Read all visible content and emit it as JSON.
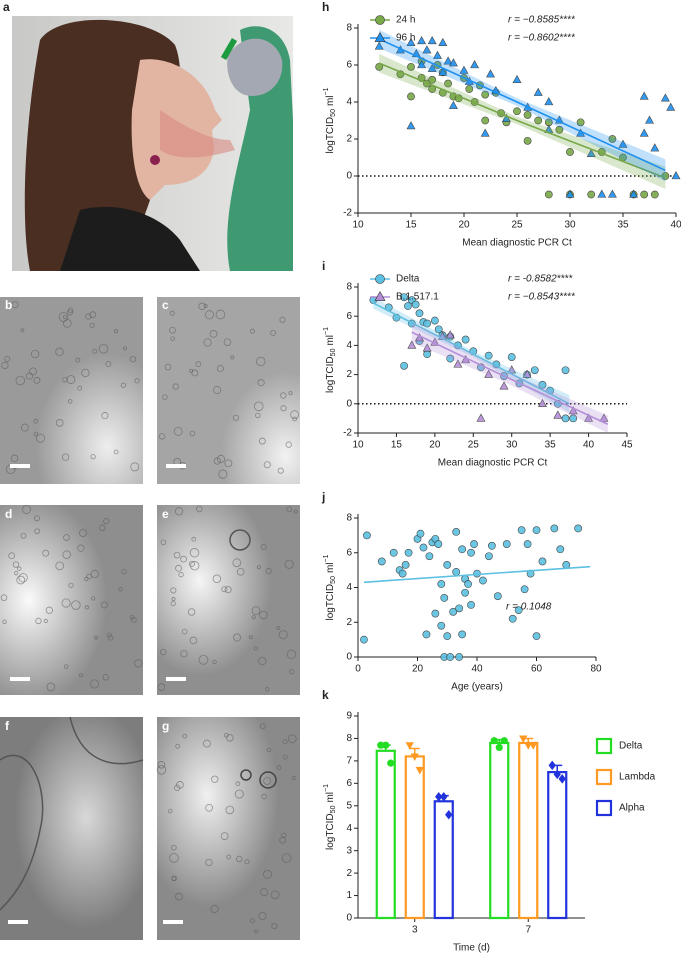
{
  "image_panels": [
    "a",
    "b",
    "c",
    "d",
    "e",
    "f",
    "g"
  ],
  "chart_data": [
    {
      "type": "scatter",
      "panel": "h",
      "x_label": "Mean diagnostic PCR Ct",
      "y_label": {
        "text": "logTCID",
        "sub": "50",
        "unit": "ml",
        "sup": "−1"
      },
      "xlim": [
        10,
        40
      ],
      "xticks": [
        10,
        15,
        20,
        25,
        30,
        35,
        40
      ],
      "ylim": [
        -2,
        8
      ],
      "yticks": [
        -2,
        0,
        2,
        4,
        6,
        8
      ],
      "reference_line": 0,
      "legend": true,
      "series": [
        {
          "name": "24 h",
          "color": "#78a848",
          "marker": "circle",
          "r_label": "r = −0.8585****",
          "x": [
            12,
            14,
            15,
            15,
            16,
            16,
            16.5,
            17,
            17,
            17.5,
            18,
            18,
            18.5,
            19,
            19.5,
            20,
            20.5,
            21,
            21.5,
            22,
            22,
            23,
            23.5,
            24,
            25,
            26,
            26,
            27,
            28,
            28,
            29,
            30,
            30,
            31,
            32,
            33,
            34,
            35,
            36,
            37,
            38,
            39
          ],
          "values": [
            5.9,
            5.5,
            4.3,
            5.9,
            5.3,
            6.2,
            5.0,
            5.2,
            4.7,
            6.0,
            5.6,
            4.5,
            5.0,
            4.3,
            4.2,
            5.3,
            4.7,
            4.0,
            4.9,
            4.4,
            3.0,
            4.5,
            3.4,
            2.9,
            3.5,
            3.3,
            1.9,
            3.0,
            -1,
            2.9,
            2.5,
            1.3,
            -1,
            2.9,
            -1,
            1.3,
            2.0,
            1.0,
            -1,
            -1,
            -1,
            0
          ],
          "fit": {
            "x": [
              12,
              25,
              39
            ],
            "y": [
              6.1,
              3.0,
              -0.1
            ],
            "lower": [
              5.6,
              2.8,
              -0.7
            ],
            "upper": [
              6.6,
              3.2,
              0.5
            ]
          }
        },
        {
          "name": "96 h",
          "color": "#1e90f0",
          "marker": "triangle",
          "r_label": "r = −0.8602****",
          "x": [
            12,
            14,
            15,
            15,
            15.5,
            16,
            16,
            16.5,
            17,
            17,
            17.5,
            18,
            18,
            18.5,
            19,
            19,
            20,
            20.5,
            21,
            22,
            22.5,
            23,
            24,
            25,
            26,
            27,
            28,
            28,
            29,
            30,
            31,
            32,
            33,
            34,
            35,
            36,
            37,
            37,
            37.5,
            38,
            39,
            39.5,
            40
          ],
          "values": [
            7.0,
            6.8,
            2.7,
            7.2,
            6.6,
            7.3,
            6.0,
            6.8,
            7.3,
            5.8,
            6.5,
            7.2,
            5.6,
            6.2,
            6.1,
            3.8,
            5.7,
            5.1,
            6.0,
            2.3,
            5.5,
            4.6,
            3.1,
            5.2,
            3.7,
            4.5,
            4.0,
            2.5,
            3.0,
            -1,
            2.3,
            1.2,
            -1,
            -1,
            1.7,
            -1,
            4.3,
            2.3,
            3.0,
            1.5,
            4.2,
            3.7,
            0
          ],
          "fit": {
            "x": [
              12,
              25,
              39
            ],
            "y": [
              7.4,
              4.0,
              0.3
            ],
            "lower": [
              6.9,
              3.8,
              -0.3
            ],
            "upper": [
              7.9,
              4.2,
              0.9
            ]
          }
        }
      ]
    },
    {
      "type": "scatter",
      "panel": "i",
      "x_label": "Mean diagnostic PCR Ct",
      "y_label": {
        "text": "logTCID",
        "sub": "50",
        "unit": "ml",
        "sup": "−1"
      },
      "xlim": [
        10,
        45
      ],
      "xticks": [
        10,
        15,
        20,
        25,
        30,
        35,
        40,
        45
      ],
      "ylim": [
        -2,
        8
      ],
      "yticks": [
        -2,
        0,
        2,
        4,
        6,
        8
      ],
      "reference_line": 0,
      "legend": true,
      "series": [
        {
          "name": "Delta",
          "color": "#5cc0e2",
          "marker": "circle",
          "r_label": "r = -0.8582****",
          "x": [
            12,
            14,
            15,
            16,
            16,
            16.5,
            17,
            17,
            17.5,
            18,
            18,
            18.5,
            19,
            19,
            20,
            20.5,
            21,
            22,
            22,
            23,
            24,
            25,
            26,
            27,
            28,
            29,
            30,
            31,
            32,
            33,
            34,
            35,
            36,
            37,
            37,
            38
          ],
          "values": [
            7.1,
            6.6,
            5.9,
            7.3,
            2.6,
            6.7,
            7.1,
            5.5,
            6.8,
            6.2,
            4.3,
            5.6,
            5.5,
            3.4,
            5.7,
            5.1,
            4.7,
            4.6,
            3.1,
            4.0,
            4.4,
            3.6,
            2.5,
            3.3,
            2.7,
            1.9,
            3.2,
            1.4,
            2.0,
            2.3,
            1.3,
            0.9,
            0,
            2.3,
            -1,
            -1
          ],
          "fit": {
            "x": [
              12,
              25,
              37.5
            ],
            "y": [
              6.9,
              3.4,
              0
            ],
            "lower": [
              6.5,
              3.2,
              -0.6
            ],
            "upper": [
              7.3,
              3.6,
              0.6
            ]
          }
        },
        {
          "name": "B.1.517.1",
          "color": "#b48fd8",
          "marker": "triangle",
          "r_label": "r = −0.8543****",
          "x": [
            17,
            18,
            19,
            20,
            21,
            22,
            23,
            24,
            26,
            27,
            29,
            30,
            32,
            34,
            36,
            38,
            40,
            42
          ],
          "values": [
            4.0,
            4.5,
            3.8,
            4.2,
            4.6,
            4.7,
            2.7,
            3.0,
            -1,
            2.0,
            1.2,
            2.3,
            2.0,
            0,
            -0.8,
            -0.5,
            -1,
            -1
          ],
          "fit": {
            "x": [
              17,
              29,
              42.5
            ],
            "y": [
              4.9,
              1.9,
              -1.4
            ],
            "lower": [
              4.2,
              1.5,
              -2.0
            ],
            "upper": [
              5.6,
              2.3,
              -0.8
            ]
          }
        }
      ]
    },
    {
      "type": "scatter",
      "panel": "j",
      "x_label": "Age (years)",
      "y_label": {
        "text": "logTCID",
        "sub": "50",
        "unit": "ml",
        "sup": "−1"
      },
      "xlim": [
        0,
        80
      ],
      "xticks": [
        0,
        20,
        40,
        60,
        80
      ],
      "ylim": [
        0,
        8
      ],
      "yticks": [
        0,
        2,
        4,
        6,
        8
      ],
      "annotation": "r = 0.1048",
      "series": [
        {
          "color": "#5cc0e2",
          "marker": "circle",
          "x": [
            2,
            3,
            8,
            12,
            14,
            15,
            16,
            17,
            20,
            21,
            22,
            23,
            24,
            25,
            26,
            26,
            27,
            28,
            28,
            29,
            29,
            30,
            30,
            31,
            32,
            33,
            33,
            34,
            34,
            35,
            35,
            36,
            36,
            37,
            38,
            38,
            39,
            40,
            42,
            44,
            45,
            47,
            50,
            52,
            54,
            55,
            56,
            57,
            58,
            60,
            60,
            62,
            66,
            68,
            70,
            74
          ],
          "values": [
            1.0,
            7.0,
            5.5,
            6.0,
            5.0,
            4.8,
            5.3,
            6.0,
            6.8,
            7.1,
            6.3,
            1.3,
            5.8,
            6.6,
            2.5,
            6.8,
            6.5,
            1.8,
            4.2,
            0,
            3.4,
            5.3,
            1.2,
            0,
            2.6,
            7.2,
            4.9,
            2.8,
            0,
            1.3,
            6.2,
            3.7,
            4.5,
            4.2,
            6.0,
            3.0,
            6.5,
            4.8,
            4.4,
            5.8,
            6.4,
            3.5,
            6.5,
            2.2,
            2.7,
            7.3,
            3.9,
            6.5,
            4.8,
            1.2,
            7.3,
            5.5,
            7.4,
            6.2,
            5.3,
            7.4
          ],
          "fit": {
            "x": [
              2,
              78
            ],
            "y": [
              4.3,
              5.2
            ]
          }
        }
      ]
    },
    {
      "type": "bar",
      "panel": "k",
      "x_label": "Time (d)",
      "y_label": {
        "text": "logTCID",
        "sub": "50",
        "unit": "ml",
        "sup": "−1"
      },
      "categories": [
        "3",
        "7"
      ],
      "ylim": [
        0,
        9
      ],
      "yticks": [
        0,
        1,
        2,
        3,
        4,
        5,
        6,
        7,
        8,
        9
      ],
      "series": [
        {
          "name": "Delta",
          "color": "#22dd22",
          "marker": "circle",
          "values": [
            7.45,
            7.8
          ],
          "errors": [
            0.25,
            0.15
          ],
          "points": [
            [
              7.7,
              7.7,
              6.9
            ],
            [
              7.9,
              7.6,
              7.9
            ]
          ]
        },
        {
          "name": "Lambda",
          "color": "#ff9922",
          "marker": "triangle-down",
          "values": [
            7.2,
            7.8
          ],
          "errors": [
            0.35,
            0.2
          ],
          "points": [
            [
              7.7,
              7.2,
              6.6
            ],
            [
              8.0,
              7.7,
              7.7
            ]
          ]
        },
        {
          "name": "Alpha",
          "color": "#2233dd",
          "marker": "diamond",
          "values": [
            5.2,
            6.5
          ],
          "errors": [
            0.25,
            0.3
          ],
          "points": [
            [
              5.4,
              5.4,
              4.6
            ],
            [
              6.8,
              6.4,
              6.2
            ]
          ]
        }
      ]
    }
  ]
}
